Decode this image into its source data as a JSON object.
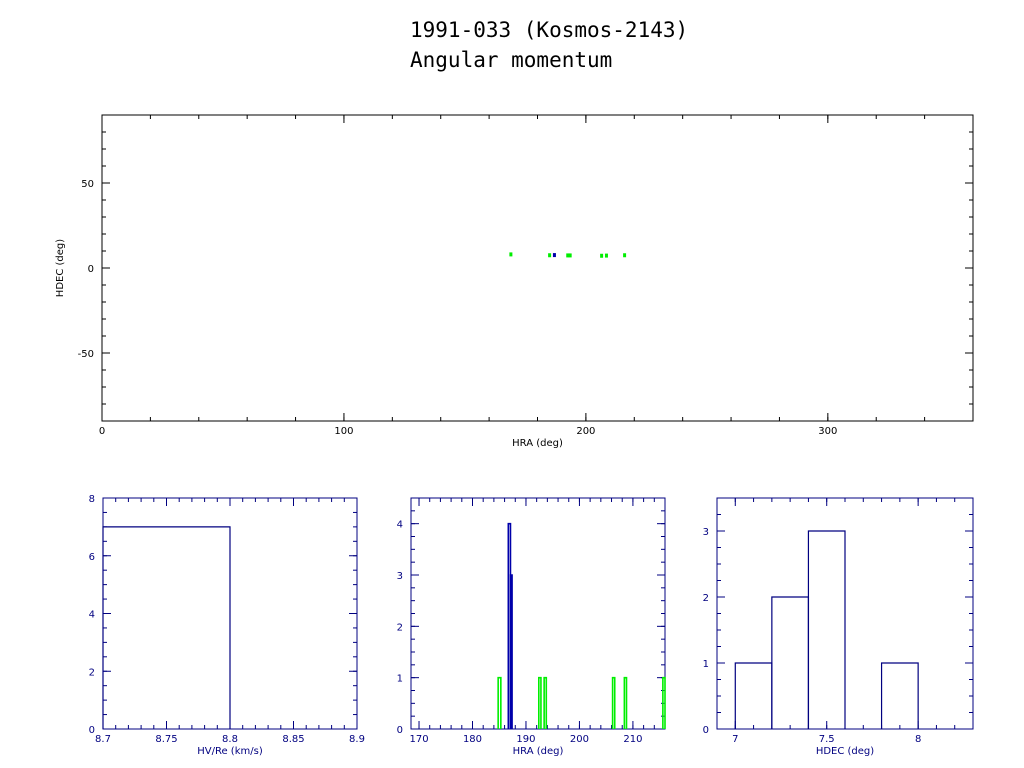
{
  "header": {
    "title": "1991-033 (Kosmos-2143)",
    "subtitle": "Angular momentum"
  },
  "colors": {
    "frame_top": "#000000",
    "frame_bottom": "#000080",
    "histogram": "#000080",
    "green": "#00ee00",
    "blue": "#0000aa"
  },
  "chart_data": [
    {
      "type": "scatter",
      "xlabel": "HRA (deg)",
      "ylabel": "HDEC (deg)",
      "xlim": [
        0,
        360
      ],
      "ylim": [
        -90,
        90
      ],
      "xticks": [
        0,
        100,
        200,
        300
      ],
      "yticks": [
        -50,
        0,
        50
      ],
      "series": [
        {
          "color": "green",
          "points": [
            [
              169,
              8
            ],
            [
              185,
              7.5
            ],
            [
              192.5,
              7.4
            ],
            [
              193.5,
              7.4
            ],
            [
              206.5,
              7.2
            ],
            [
              208.5,
              7.3
            ],
            [
              216,
              7.5
            ]
          ]
        },
        {
          "color": "blue",
          "points": [
            [
              187,
              7.6
            ]
          ]
        }
      ]
    },
    {
      "type": "bar",
      "xlabel": "HV/Re (km/s)",
      "xlim": [
        8.7,
        8.9
      ],
      "ylim": [
        0,
        8
      ],
      "xticks": [
        8.7,
        8.75,
        8.8,
        8.85,
        8.9
      ],
      "xtick_labels": [
        "8.7",
        "8.75",
        "8.8",
        "8.85",
        "8.9"
      ],
      "yticks": [
        0,
        2,
        4,
        6,
        8
      ],
      "bins": [
        {
          "from": 8.7,
          "to": 8.8,
          "value": 7
        }
      ]
    },
    {
      "type": "bar",
      "xlabel": "HRA (deg)",
      "xlim": [
        168.5,
        216
      ],
      "ylim": [
        0,
        4.5
      ],
      "xticks": [
        170,
        180,
        190,
        200,
        210
      ],
      "yticks": [
        0,
        1,
        2,
        3,
        4
      ],
      "series": [
        {
          "color": "blue",
          "bins": [
            {
              "from": 186.7,
              "to": 187.1,
              "value": 4
            },
            {
              "from": 187.1,
              "to": 187.4,
              "value": 3
            }
          ]
        },
        {
          "color": "green",
          "bins": [
            {
              "from": 184.8,
              "to": 185.3,
              "value": 1
            },
            {
              "from": 192.4,
              "to": 192.8,
              "value": 1
            },
            {
              "from": 193.4,
              "to": 193.8,
              "value": 1
            },
            {
              "from": 206.2,
              "to": 206.6,
              "value": 1
            },
            {
              "from": 208.4,
              "to": 208.8,
              "value": 1
            },
            {
              "from": 215.6,
              "to": 216.0,
              "value": 1
            }
          ]
        }
      ]
    },
    {
      "type": "bar",
      "xlabel": "HDEC (deg)",
      "xlim": [
        6.9,
        8.3
      ],
      "ylim": [
        0,
        3.5
      ],
      "xticks": [
        7,
        7.5,
        8
      ],
      "xtick_labels": [
        "7",
        "7.5",
        "8"
      ],
      "yticks": [
        0,
        1,
        2,
        3
      ],
      "bins": [
        {
          "from": 7.0,
          "to": 7.2,
          "value": 1
        },
        {
          "from": 7.2,
          "to": 7.4,
          "value": 2
        },
        {
          "from": 7.4,
          "to": 7.6,
          "value": 3
        },
        {
          "from": 7.6,
          "to": 7.8,
          "value": 0
        },
        {
          "from": 7.8,
          "to": 8.0,
          "value": 1
        }
      ]
    }
  ]
}
